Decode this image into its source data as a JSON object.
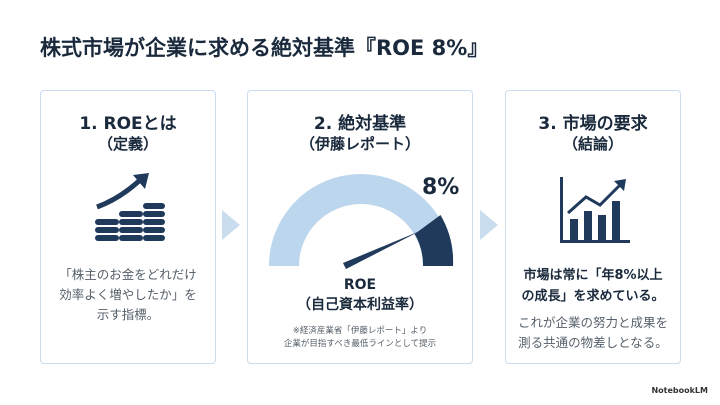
{
  "title": "株式市場が企業に求める絶対基準『ROE 8%』",
  "cards": [
    {
      "heading": "1. ROEとは",
      "subheading": "（定義）",
      "body": [
        "「株主のお金をどれだけ",
        "効率よく増やしたか」を",
        "示す指標。"
      ]
    },
    {
      "heading": "2. 絶対基準",
      "subheading": "（伊藤レポート）",
      "gauge_label": "8%",
      "caption": [
        "ROE",
        "（自己資本利益率）"
      ],
      "note": [
        "※経済産業省「伊藤レポート」より",
        "企業が目指すべき最低ラインとして提示"
      ]
    },
    {
      "heading": "3. 市場の要求",
      "subheading": "（結論）",
      "emphasis": [
        "市場は常に「年8%以上",
        "の成長」を求めている。"
      ],
      "body": [
        "これが企業の努力と成果を",
        "測る共通の物差しとなる。"
      ]
    }
  ],
  "footer": "NotebookLM"
}
